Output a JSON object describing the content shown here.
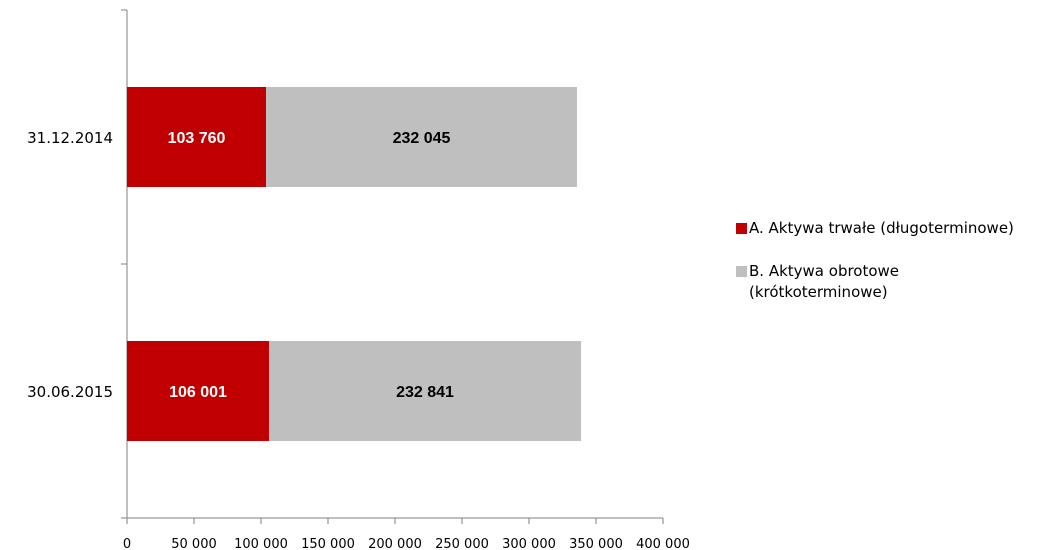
{
  "chart_data": {
    "type": "bar",
    "orientation": "horizontal",
    "stacked": true,
    "categories": [
      "31.12.2014",
      "30.06.2015"
    ],
    "series": [
      {
        "name": "A. Aktywa trwałe (długoterminowe)",
        "values": [
          103760,
          106001
        ],
        "labels": [
          "103 760",
          "106 001"
        ],
        "color": "#C00000",
        "label_color": "#FFFFFF"
      },
      {
        "name": "B. Aktywa obrotowe (krótkoterminowe)",
        "values": [
          232045,
          232841
        ],
        "labels": [
          "232 045",
          "232 841"
        ],
        "color": "#BFBFBF",
        "label_color": "#000000"
      }
    ],
    "xlim": [
      0,
      400000
    ],
    "xticks": [
      0,
      50000,
      100000,
      150000,
      200000,
      250000,
      300000,
      350000,
      400000
    ],
    "xtick_labels": [
      "0",
      "50 000",
      "100 000",
      "150 000",
      "200 000",
      "250 000",
      "300 000",
      "350 000",
      "400 000"
    ],
    "grid": false,
    "legend_position": "right",
    "title": "",
    "xlabel": "",
    "ylabel": ""
  }
}
